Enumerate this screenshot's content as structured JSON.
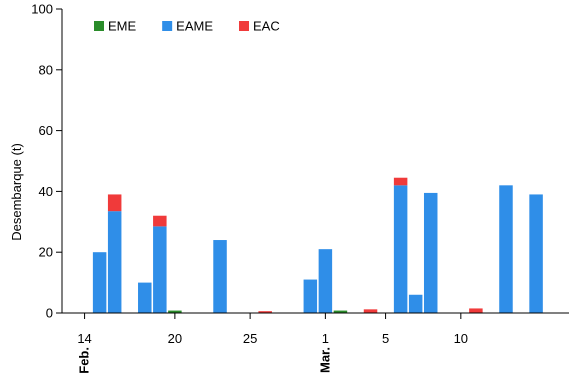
{
  "chart_data": {
    "type": "bar",
    "stacked": true,
    "title": "",
    "xlabel": "",
    "ylabel": "Desembarque (t)",
    "ylim": [
      0,
      100
    ],
    "yticks": [
      0,
      20,
      40,
      60,
      80,
      100
    ],
    "grid": false,
    "legend_position": "top-left",
    "x_range": [
      "2024-02-13",
      "2024-03-14"
    ],
    "x_ticks": [
      {
        "date": "2024-02-14",
        "label": "14",
        "month": "Feb."
      },
      {
        "date": "2024-02-20",
        "label": "20",
        "month": ""
      },
      {
        "date": "2024-02-25",
        "label": "25",
        "month": ""
      },
      {
        "date": "2024-03-01",
        "label": "1",
        "month": "Mar."
      },
      {
        "date": "2024-03-05",
        "label": "5",
        "month": ""
      },
      {
        "date": "2024-03-10",
        "label": "10",
        "month": ""
      }
    ],
    "series": [
      {
        "name": "EME",
        "color": "#2a8c2a"
      },
      {
        "name": "EAME",
        "color": "#2f8ee8"
      },
      {
        "name": "EAC",
        "color": "#f03a3a"
      }
    ],
    "data": [
      {
        "date": "2024-02-15",
        "EME": 0,
        "EAME": 20,
        "EAC": 0
      },
      {
        "date": "2024-02-16",
        "EME": 0,
        "EAME": 33.5,
        "EAC": 5.5
      },
      {
        "date": "2024-02-18",
        "EME": 0,
        "EAME": 10,
        "EAC": 0
      },
      {
        "date": "2024-02-19",
        "EME": 0,
        "EAME": 28.5,
        "EAC": 3.5
      },
      {
        "date": "2024-02-20",
        "EME": 0.8,
        "EAME": 0,
        "EAC": 0
      },
      {
        "date": "2024-02-23",
        "EME": 0,
        "EAME": 24,
        "EAC": 0
      },
      {
        "date": "2024-02-26",
        "EME": 0,
        "EAME": 0,
        "EAC": 0.6
      },
      {
        "date": "2024-02-29",
        "EME": 0,
        "EAME": 11,
        "EAC": 0
      },
      {
        "date": "2024-03-01",
        "EME": 0,
        "EAME": 21,
        "EAC": 0
      },
      {
        "date": "2024-03-02",
        "EME": 0.8,
        "EAME": 0,
        "EAC": 0
      },
      {
        "date": "2024-03-04",
        "EME": 0,
        "EAME": 0,
        "EAC": 1.2
      },
      {
        "date": "2024-03-06",
        "EME": 0,
        "EAME": 42,
        "EAC": 2.5
      },
      {
        "date": "2024-03-07",
        "EME": 0,
        "EAME": 6,
        "EAC": 0
      },
      {
        "date": "2024-03-08",
        "EME": 0,
        "EAME": 39.5,
        "EAC": 0
      },
      {
        "date": "2024-03-11",
        "EME": 0,
        "EAME": 0,
        "EAC": 1.5
      },
      {
        "date": "2024-03-13",
        "EME": 0,
        "EAME": 42,
        "EAC": 0
      },
      {
        "date": "2024-03-15",
        "EME": 0,
        "EAME": 39,
        "EAC": 0
      }
    ]
  }
}
